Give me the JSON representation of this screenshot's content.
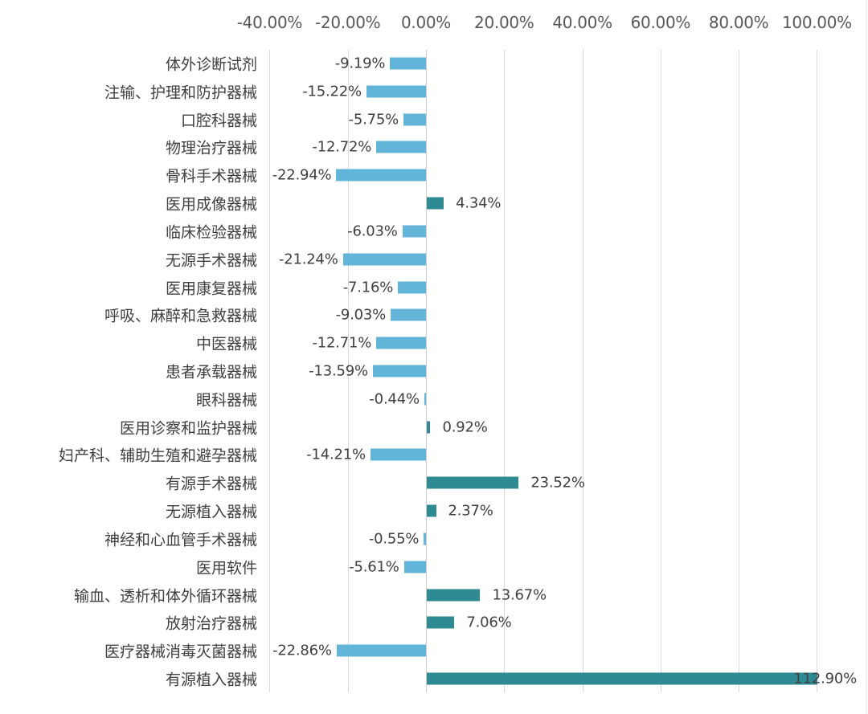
{
  "chart_data": {
    "type": "bar",
    "orientation": "horizontal",
    "title": "",
    "xlabel": "",
    "ylabel": "",
    "xlim": [
      -40,
      100
    ],
    "x_ticks": [
      "-40.00%",
      "-20.00%",
      "0.00%",
      "20.00%",
      "40.00%",
      "60.00%",
      "80.00%",
      "100.00%"
    ],
    "x_tick_values": [
      -40,
      -20,
      0,
      20,
      40,
      60,
      80,
      100
    ],
    "axis_position": "top",
    "grid": true,
    "legend": null,
    "colors": {
      "negative": "#62b5d9",
      "positive": "#2e8b93"
    },
    "categories": [
      "体外诊断试剂",
      "注输、护理和防护器械",
      "口腔科器械",
      "物理治疗器械",
      "骨科手术器械",
      "医用成像器械",
      "临床检验器械",
      "无源手术器械",
      "医用康复器械",
      "呼吸、麻醉和急救器械",
      "中医器械",
      "患者承载器械",
      "眼科器械",
      "医用诊察和监护器械",
      "妇产科、辅助生殖和避孕器械",
      "有源手术器械",
      "无源植入器械",
      "神经和心血管手术器械",
      "医用软件",
      "输血、透析和体外循环器械",
      "放射治疗器械",
      "医疗器械消毒灭菌器械",
      "有源植入器械"
    ],
    "values": [
      -9.19,
      -15.22,
      -5.75,
      -12.72,
      -22.94,
      4.34,
      -6.03,
      -21.24,
      -7.16,
      -9.03,
      -12.71,
      -13.59,
      -0.44,
      0.92,
      -14.21,
      23.52,
      2.37,
      -0.55,
      -5.61,
      13.67,
      7.06,
      -22.86,
      112.9
    ],
    "value_labels": [
      "-9.19%",
      "-15.22%",
      "-5.75%",
      "-12.72%",
      "-22.94%",
      "4.34%",
      "-6.03%",
      "-21.24%",
      "-7.16%",
      "-9.03%",
      "-12.71%",
      "-13.59%",
      "-0.44%",
      "0.92%",
      "-14.21%",
      "23.52%",
      "2.37%",
      "-0.55%",
      "-5.61%",
      "13.67%",
      "7.06%",
      "-22.86%",
      "112.90%"
    ]
  }
}
